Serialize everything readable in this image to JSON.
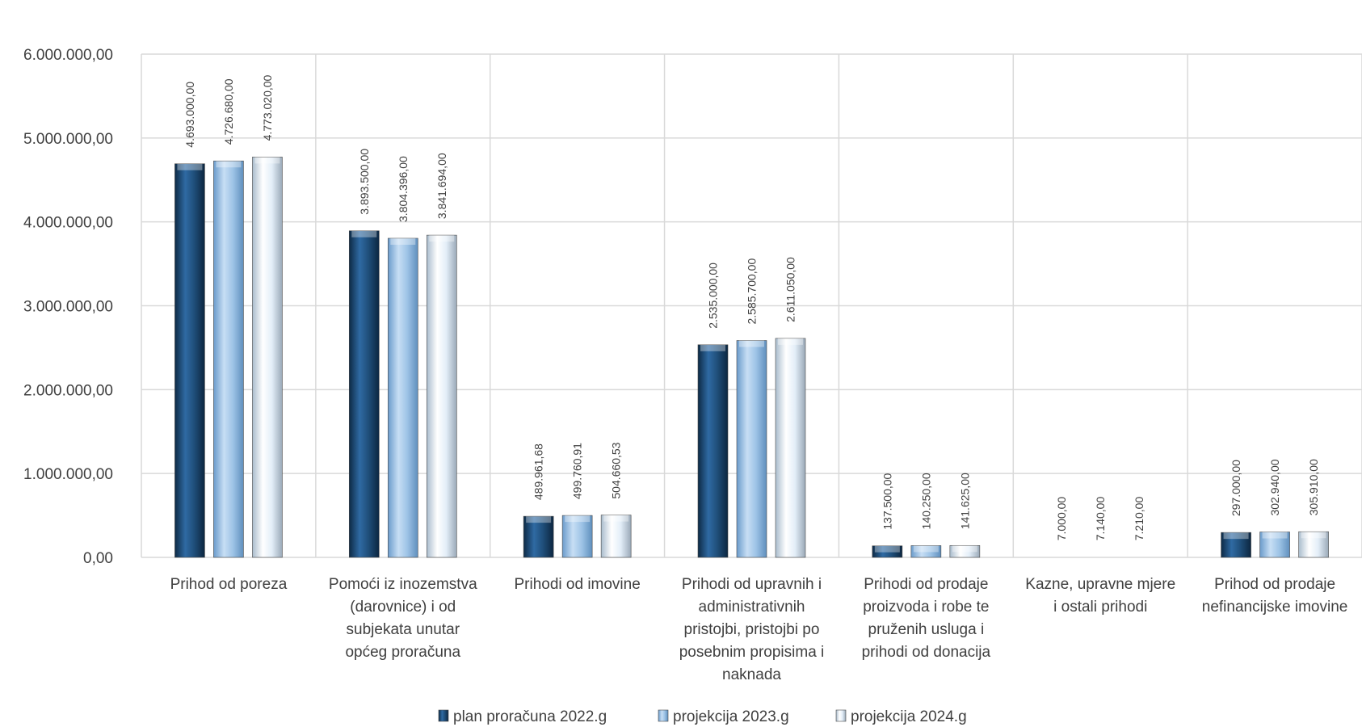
{
  "chart_data": {
    "type": "bar",
    "title": "",
    "xlabel": "",
    "ylabel": "",
    "ylim": [
      0,
      6000000
    ],
    "yticks": [
      0,
      1000000,
      2000000,
      3000000,
      4000000,
      5000000,
      6000000
    ],
    "ytick_labels": [
      "0,00",
      "1.000.000,00",
      "2.000.000,00",
      "3.000.000,00",
      "4.000.000,00",
      "5.000.000,00",
      "6.000.000,00"
    ],
    "grid": true,
    "legend_position": "bottom",
    "categories": [
      [
        "Prihod od poreza"
      ],
      [
        "Pomoći iz inozemstva",
        "(darovnice) i od",
        "subjekata unutar",
        "općeg proračuna"
      ],
      [
        "Prihodi od imovine"
      ],
      [
        "Prihodi od upravnih i",
        "administrativnih",
        "pristojbi, pristojbi po",
        "posebnim propisima i",
        "naknada"
      ],
      [
        "Prihodi od prodaje",
        "proizvoda i robe te",
        "pruženih usluga i",
        "prihodi od donacija"
      ],
      [
        "Kazne, upravne mjere",
        "i ostali prihodi"
      ],
      [
        "Prihod od prodaje",
        "nefinancijske imovine"
      ]
    ],
    "series": [
      {
        "name": "plan proračuna 2022.g",
        "color": "#1f4e79",
        "values": [
          4693000,
          3893500,
          489961.68,
          2535000,
          137500,
          7000,
          297000
        ],
        "labels": [
          "4.693.000,00",
          "3.893.500,00",
          "489.961,68",
          "2.535.000,00",
          "137.500,00",
          "7.000,00",
          "297.000,00"
        ]
      },
      {
        "name": "projekcija 2023.g",
        "color": "#9dc3e6",
        "values": [
          4726680,
          3804396,
          499760.91,
          2585700,
          140250,
          7140,
          302940
        ],
        "labels": [
          "4.726.680,00",
          "3.804.396,00",
          "499.760,91",
          "2.585.700,00",
          "140.250,00",
          "7.140,00",
          "302.940,00"
        ]
      },
      {
        "name": "projekcija 2024.g",
        "color": "#deebf7",
        "values": [
          4773020,
          3841694,
          504660.53,
          2611050,
          141625,
          7210,
          305910
        ],
        "labels": [
          "4.773.020,00",
          "3.841.694,00",
          "504.660,53",
          "2.611.050,00",
          "141.625,00",
          "7.210,00",
          "305.910,00"
        ]
      }
    ]
  }
}
